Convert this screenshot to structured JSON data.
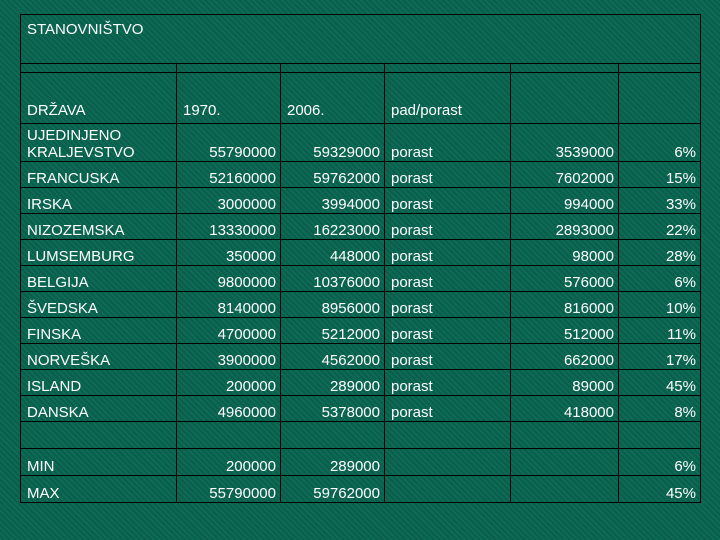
{
  "title": "STANOVNIŠTVO",
  "headers": {
    "country": "DRŽAVA",
    "y1970": "1970.",
    "y2006": "2006.",
    "change": "pad/porast"
  },
  "rows": [
    {
      "country": "UJEDINJENO KRALJEVSTVO",
      "y1970": "55790000",
      "y2006": "59329000",
      "trend": "porast",
      "diff": "3539000",
      "pct": "6%"
    },
    {
      "country": "FRANCUSKA",
      "y1970": "52160000",
      "y2006": "59762000",
      "trend": "porast",
      "diff": "7602000",
      "pct": "15%"
    },
    {
      "country": "IRSKA",
      "y1970": "3000000",
      "y2006": "3994000",
      "trend": "porast",
      "diff": "994000",
      "pct": "33%"
    },
    {
      "country": "NIZOZEMSKA",
      "y1970": "13330000",
      "y2006": "16223000",
      "trend": "porast",
      "diff": "2893000",
      "pct": "22%"
    },
    {
      "country": "LUMSEMBURG",
      "y1970": "350000",
      "y2006": "448000",
      "trend": "porast",
      "diff": "98000",
      "pct": "28%"
    },
    {
      "country": "BELGIJA",
      "y1970": "9800000",
      "y2006": "10376000",
      "trend": "porast",
      "diff": "576000",
      "pct": "6%"
    },
    {
      "country": "ŠVEDSKA",
      "y1970": "8140000",
      "y2006": "8956000",
      "trend": "porast",
      "diff": "816000",
      "pct": "10%"
    },
    {
      "country": " FINSKA",
      "y1970": "4700000",
      "y2006": "5212000",
      "trend": "porast",
      "diff": "512000",
      "pct": "11%"
    },
    {
      "country": "NORVEŠKA",
      "y1970": "3900000",
      "y2006": "4562000",
      "trend": "porast",
      "diff": "662000",
      "pct": "17%"
    },
    {
      "country": "ISLAND",
      "y1970": "200000",
      "y2006": "289000",
      "trend": "porast",
      "diff": "89000",
      "pct": "45%"
    },
    {
      "country": "DANSKA",
      "y1970": "4960000",
      "y2006": "5378000",
      "trend": "porast",
      "diff": "418000",
      "pct": "8%"
    }
  ],
  "min": {
    "label": "MIN",
    "y1970": "200000",
    "y2006": "289000",
    "pct": "6%"
  },
  "max": {
    "label": "MAX",
    "y1970": "55790000",
    "y2006": "59762000",
    "pct": "45%"
  }
}
